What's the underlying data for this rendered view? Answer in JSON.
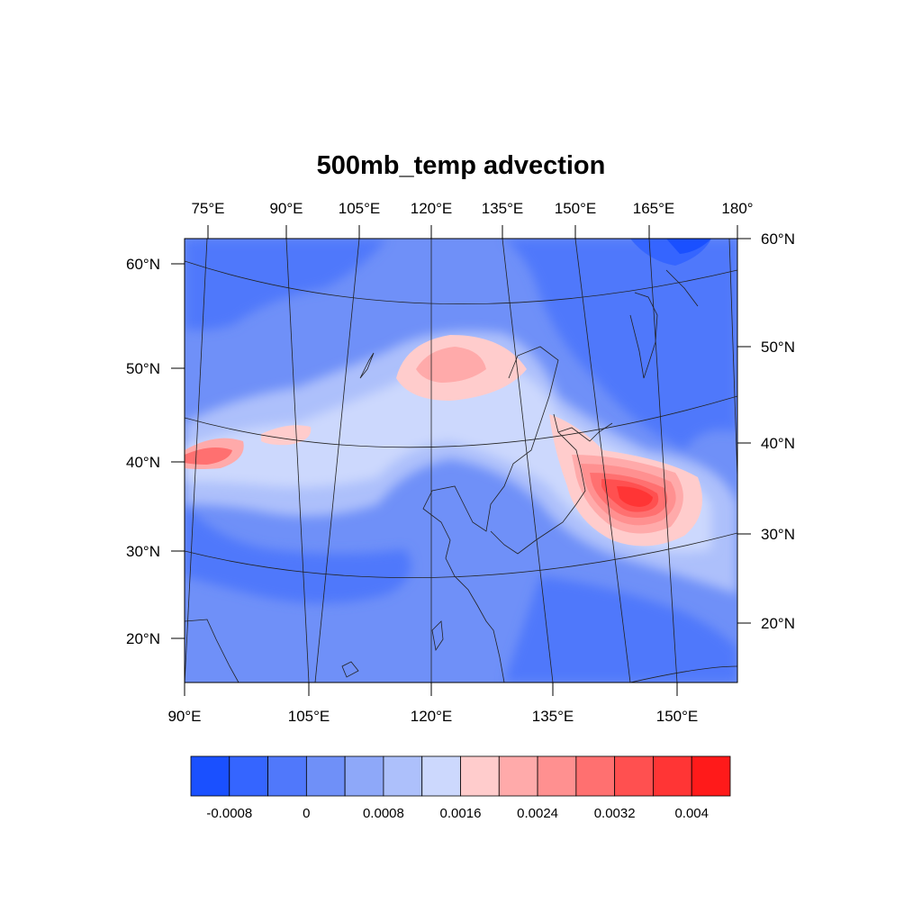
{
  "title": "500mb_temp advection",
  "top_lon_labels": [
    "75°E",
    "90°E",
    "105°E",
    "120°E",
    "135°E",
    "150°E",
    "165°E",
    "180°"
  ],
  "bottom_lon_labels": [
    "90°E",
    "105°E",
    "120°E",
    "135°E",
    "150°E"
  ],
  "left_lat_labels": [
    "60°N",
    "50°N",
    "40°N",
    "30°N",
    "20°N"
  ],
  "right_lat_labels": [
    "60°N",
    "50°N",
    "40°N",
    "30°N",
    "20°N"
  ],
  "colorbar": {
    "colors": [
      "#1a50ff",
      "#3565ff",
      "#5078fb",
      "#6f90f8",
      "#8ea8f9",
      "#adc0fb",
      "#ccd8fd",
      "#ffcccc",
      "#ffaaaa",
      "#ff9090",
      "#ff7070",
      "#ff5050",
      "#ff3535",
      "#ff1a1a"
    ],
    "labels": [
      "-0.0008",
      "0",
      "0.0008",
      "0.0016",
      "0.0024",
      "0.0032",
      "0.004"
    ]
  }
}
